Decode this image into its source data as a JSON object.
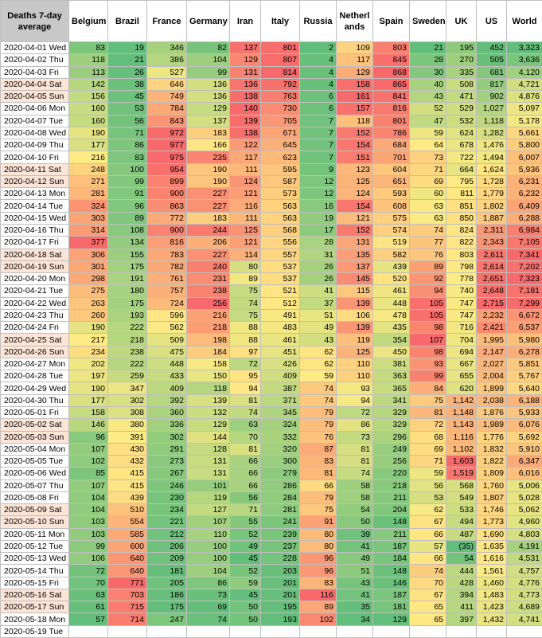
{
  "table": {
    "corner_header": "Deaths 7-day average",
    "columns": [
      "Belgium",
      "Brazil",
      "France",
      "Germany",
      "Iran",
      "Italy",
      "Russia",
      "Netherl ands",
      "Spain",
      "Sweden",
      "UK",
      "US",
      "World"
    ],
    "rows": [
      {
        "date": "2020-04-01 Wed",
        "values": [
          "83",
          "19",
          "346",
          "82",
          "137",
          "801",
          "2",
          "109",
          "803",
          "21",
          "195",
          "452",
          "3,323"
        ]
      },
      {
        "date": "2020-04-02 Thu",
        "values": [
          "118",
          "21",
          "386",
          "104",
          "129",
          "807",
          "4",
          "117",
          "845",
          "28",
          "270",
          "505",
          "3,636"
        ]
      },
      {
        "date": "2020-04-03 Fri",
        "values": [
          "113",
          "26",
          "527",
          "99",
          "131",
          "814",
          "4",
          "129",
          "868",
          "30",
          "335",
          "681",
          "4,120"
        ]
      },
      {
        "date": "2020-04-04 Sat",
        "values": [
          "142",
          "38",
          "646",
          "136",
          "136",
          "792",
          "4",
          "158",
          "865",
          "40",
          "508",
          "817",
          "4,721"
        ]
      },
      {
        "date": "2020-04-05 Sun",
        "values": [
          "156",
          "45",
          "749",
          "136",
          "138",
          "763",
          "6",
          "161",
          "841",
          "43",
          "471",
          "902",
          "4,876"
        ]
      },
      {
        "date": "2020-04-06 Mon",
        "values": [
          "160",
          "53",
          "784",
          "129",
          "140",
          "730",
          "6",
          "157",
          "816",
          "52",
          "529",
          "1,027",
          "5,097"
        ]
      },
      {
        "date": "2020-04-07 Tue",
        "values": [
          "160",
          "56",
          "843",
          "137",
          "139",
          "705",
          "7",
          "118",
          "801",
          "47",
          "532",
          "1,118",
          "5,178"
        ]
      },
      {
        "date": "2020-04-08 Wed",
        "values": [
          "190",
          "71",
          "972",
          "183",
          "138",
          "671",
          "7",
          "152",
          "786",
          "59",
          "624",
          "1,282",
          "5,661"
        ]
      },
      {
        "date": "2020-04-09 Thu",
        "values": [
          "177",
          "86",
          "977",
          "166",
          "122",
          "645",
          "7",
          "154",
          "684",
          "64",
          "678",
          "1,476",
          "5,800"
        ]
      },
      {
        "date": "2020-04-10 Fri",
        "values": [
          "216",
          "83",
          "975",
          "235",
          "117",
          "623",
          "7",
          "151",
          "701",
          "73",
          "722",
          "1,494",
          "6,007"
        ]
      },
      {
        "date": "2020-04-11 Sat",
        "values": [
          "248",
          "100",
          "954",
          "190",
          "111",
          "595",
          "9",
          "123",
          "604",
          "71",
          "664",
          "1,624",
          "5,936"
        ]
      },
      {
        "date": "2020-04-12 Sun",
        "values": [
          "271",
          "99",
          "899",
          "190",
          "124",
          "587",
          "12",
          "125",
          "651",
          "69",
          "795",
          "1,728",
          "6,231"
        ]
      },
      {
        "date": "2020-04-13 Mon",
        "values": [
          "281",
          "91",
          "900",
          "227",
          "121",
          "573",
          "12",
          "124",
          "593",
          "60",
          "811",
          "1,779",
          "6,232"
        ]
      },
      {
        "date": "2020-04-14 Tue",
        "values": [
          "324",
          "96",
          "863",
          "227",
          "116",
          "563",
          "16",
          "154",
          "608",
          "63",
          "851",
          "1,802",
          "6,409"
        ]
      },
      {
        "date": "2020-04-15 Wed",
        "values": [
          "303",
          "89",
          "772",
          "183",
          "111",
          "563",
          "19",
          "121",
          "575",
          "63",
          "850",
          "1,887",
          "6,288"
        ]
      },
      {
        "date": "2020-04-16 Thu",
        "values": [
          "314",
          "108",
          "900",
          "244",
          "125",
          "568",
          "17",
          "152",
          "574",
          "74",
          "824",
          "2,311",
          "6,984"
        ]
      },
      {
        "date": "2020-04-17 Fri",
        "values": [
          "377",
          "134",
          "816",
          "206",
          "121",
          "556",
          "28",
          "131",
          "519",
          "77",
          "822",
          "2,343",
          "7,105"
        ]
      },
      {
        "date": "2020-04-18 Sat",
        "values": [
          "306",
          "155",
          "783",
          "227",
          "114",
          "557",
          "31",
          "135",
          "582",
          "76",
          "803",
          "2,611",
          "7,341"
        ]
      },
      {
        "date": "2020-04-19 Sun",
        "values": [
          "301",
          "175",
          "782",
          "240",
          "80",
          "537",
          "26",
          "137",
          "439",
          "89",
          "798",
          "2,614",
          "7,202"
        ]
      },
      {
        "date": "2020-04-20 Mon",
        "values": [
          "298",
          "191",
          "761",
          "231",
          "89",
          "537",
          "26",
          "145",
          "520",
          "92",
          "778",
          "2,651",
          "7,323"
        ]
      },
      {
        "date": "2020-04-21 Tue",
        "values": [
          "275",
          "180",
          "757",
          "238",
          "75",
          "521",
          "41",
          "115",
          "461",
          "94",
          "740",
          "2,648",
          "7,181"
        ]
      },
      {
        "date": "2020-04-22 Wed",
        "values": [
          "263",
          "175",
          "724",
          "256",
          "74",
          "512",
          "37",
          "139",
          "448",
          "105",
          "747",
          "2,715",
          "7,299"
        ]
      },
      {
        "date": "2020-04-23 Thu",
        "values": [
          "260",
          "193",
          "596",
          "216",
          "75",
          "491",
          "51",
          "106",
          "478",
          "105",
          "747",
          "2,232",
          "6,672"
        ]
      },
      {
        "date": "2020-04-24 Fri",
        "values": [
          "190",
          "222",
          "562",
          "218",
          "88",
          "483",
          "49",
          "139",
          "435",
          "98",
          "716",
          "2,421",
          "6,537"
        ]
      },
      {
        "date": "2020-04-25 Sat",
        "values": [
          "217",
          "218",
          "509",
          "198",
          "88",
          "461",
          "43",
          "119",
          "354",
          "107",
          "704",
          "1,995",
          "5,980"
        ]
      },
      {
        "date": "2020-04-26 Sun",
        "values": [
          "234",
          "238",
          "475",
          "184",
          "97",
          "451",
          "62",
          "125",
          "450",
          "98",
          "694",
          "2,147",
          "6,278"
        ]
      },
      {
        "date": "2020-04-27 Mon",
        "values": [
          "202",
          "222",
          "448",
          "158",
          "72",
          "426",
          "62",
          "110",
          "381",
          "93",
          "667",
          "2,027",
          "5,851"
        ]
      },
      {
        "date": "2020-04-28 Tue",
        "values": [
          "197",
          "259",
          "433",
          "150",
          "95",
          "409",
          "59",
          "110",
          "363",
          "99",
          "655",
          "2,004",
          "5,767"
        ]
      },
      {
        "date": "2020-04-29 Wed",
        "values": [
          "190",
          "347",
          "409",
          "118",
          "94",
          "387",
          "74",
          "93",
          "365",
          "84",
          "620",
          "1,899",
          "5,640"
        ]
      },
      {
        "date": "2020-04-30 Thu",
        "values": [
          "177",
          "302",
          "392",
          "139",
          "81",
          "371",
          "74",
          "94",
          "341",
          "75",
          "1,142",
          "2,038",
          "6,188"
        ]
      },
      {
        "date": "2020-05-01 Fri",
        "values": [
          "158",
          "308",
          "360",
          "132",
          "74",
          "345",
          "79",
          "72",
          "329",
          "81",
          "1,148",
          "1,876",
          "5,933"
        ]
      },
      {
        "date": "2020-05-02 Sat",
        "values": [
          "146",
          "380",
          "336",
          "129",
          "63",
          "324",
          "79",
          "86",
          "329",
          "72",
          "1,143",
          "1,989",
          "6,076"
        ]
      },
      {
        "date": "2020-05-03 Sun",
        "values": [
          "96",
          "391",
          "302",
          "144",
          "70",
          "332",
          "76",
          "73",
          "296",
          "68",
          "1,116",
          "1,776",
          "5,692"
        ]
      },
      {
        "date": "2020-05-04 Mon",
        "values": [
          "107",
          "430",
          "291",
          "128",
          "81",
          "320",
          "87",
          "81",
          "249",
          "69",
          "1,102",
          "1,832",
          "5,910"
        ]
      },
      {
        "date": "2020-05-05 Tue",
        "values": [
          "102",
          "432",
          "273",
          "131",
          "66",
          "300",
          "83",
          "81",
          "256",
          "71",
          "1,603",
          "1,822",
          "6,347"
        ]
      },
      {
        "date": "2020-05-06 Wed",
        "values": [
          "85",
          "415",
          "267",
          "131",
          "66",
          "279",
          "81",
          "74",
          "220",
          "59",
          "1,519",
          "1,809",
          "6,016"
        ]
      },
      {
        "date": "2020-05-07 Thu",
        "values": [
          "107",
          "415",
          "246",
          "101",
          "66",
          "286",
          "66",
          "58",
          "218",
          "56",
          "568",
          "1,760",
          "5,006"
        ]
      },
      {
        "date": "2020-05-08 Fri",
        "values": [
          "104",
          "439",
          "230",
          "119",
          "56",
          "284",
          "79",
          "58",
          "211",
          "53",
          "549",
          "1,807",
          "5,028"
        ]
      },
      {
        "date": "2020-05-09 Sat",
        "values": [
          "104",
          "510",
          "234",
          "127",
          "71",
          "281",
          "75",
          "54",
          "204",
          "62",
          "533",
          "1,746",
          "5,062"
        ]
      },
      {
        "date": "2020-05-10 Sun",
        "values": [
          "103",
          "554",
          "221",
          "107",
          "55",
          "241",
          "91",
          "50",
          "148",
          "67",
          "494",
          "1,773",
          "4,960"
        ]
      },
      {
        "date": "2020-05-11 Mon",
        "values": [
          "103",
          "585",
          "212",
          "110",
          "52",
          "239",
          "80",
          "39",
          "211",
          "66",
          "487",
          "1,690",
          "4,803"
        ]
      },
      {
        "date": "2020-05-12 Tue",
        "values": [
          "99",
          "600",
          "206",
          "100",
          "49",
          "237",
          "80",
          "41",
          "187",
          "57",
          "(35)",
          "1,635",
          "4,191"
        ]
      },
      {
        "date": "2020-05-13 Wed",
        "values": [
          "106",
          "640",
          "209",
          "100",
          "45",
          "228",
          "96",
          "49",
          "184",
          "66",
          "54",
          "1,616",
          "4,531"
        ]
      },
      {
        "date": "2020-05-14 Thu",
        "values": [
          "72",
          "640",
          "181",
          "104",
          "52",
          "203",
          "96",
          "51",
          "148",
          "74",
          "444",
          "1,561",
          "4,757"
        ]
      },
      {
        "date": "2020-05-15 Fri",
        "values": [
          "70",
          "771",
          "205",
          "86",
          "59",
          "201",
          "83",
          "43",
          "146",
          "70",
          "428",
          "1,460",
          "4,776"
        ]
      },
      {
        "date": "2020-05-16 Sat",
        "values": [
          "63",
          "703",
          "186",
          "73",
          "45",
          "201",
          "116",
          "41",
          "187",
          "67",
          "394",
          "1,483",
          "4,773"
        ]
      },
      {
        "date": "2020-05-17 Sun",
        "values": [
          "61",
          "715",
          "175",
          "69",
          "50",
          "195",
          "89",
          "35",
          "181",
          "65",
          "411",
          "1,423",
          "4,689"
        ]
      },
      {
        "date": "2020-05-18 Mon",
        "values": [
          "57",
          "714",
          "247",
          "74",
          "50",
          "193",
          "102",
          "34",
          "129",
          "65",
          "397",
          "1,432",
          "4,741"
        ]
      },
      {
        "date": "2020-05-19 Tue",
        "values": [
          "",
          "",
          "",
          "",
          "",
          "",
          "",
          "",
          "",
          "",
          "",
          "",
          ""
        ]
      }
    ],
    "colors": {
      "header_corner": "#c8c8c8",
      "weekend_date": "#fce4d6",
      "scale_low": "#63be7b",
      "scale_mid": "#ffeb84",
      "scale_high": "#f8696b"
    }
  }
}
